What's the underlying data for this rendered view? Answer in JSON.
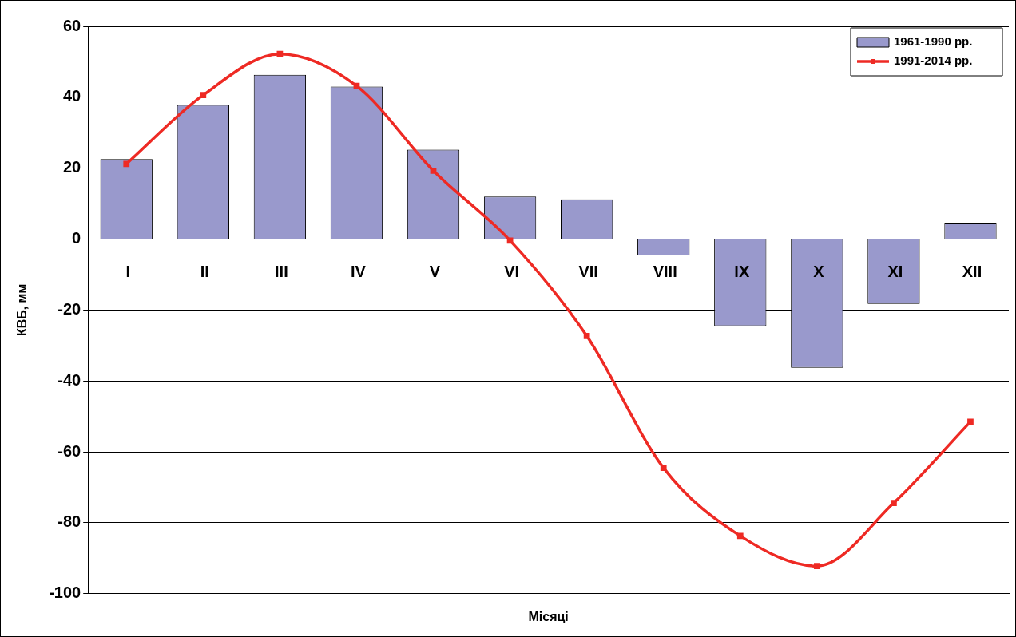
{
  "chart_data": {
    "type": "bar",
    "xlabel": "Місяці",
    "ylabel": "КВБ, мм",
    "categories": [
      "I",
      "II",
      "III",
      "IV",
      "V",
      "VI",
      "VII",
      "VIII",
      "IX",
      "X",
      "XI",
      "XII"
    ],
    "series": [
      {
        "name": "1961-1990 рр.",
        "color": "#9999cc",
        "values": [
          22.6,
          37.8,
          46.3,
          43.0,
          25.2,
          12.0,
          11.2,
          -4.6,
          -24.5,
          -36.3,
          -18.3,
          4.6
        ]
      },
      {
        "name": "1991-2014 рр.",
        "type": "line",
        "color": "#ee2a24",
        "values": [
          21.2,
          40.6,
          52.2,
          43.2,
          19.3,
          -0.4,
          -27.3,
          -64.5,
          -83.7,
          -92.2,
          -74.4,
          -51.5
        ]
      }
    ],
    "ylim": [
      -100,
      60
    ],
    "yticks": [
      -100,
      -80,
      -60,
      -40,
      -20,
      0,
      20,
      40,
      60
    ],
    "grid": "y",
    "legend": "top right",
    "marker": "square",
    "line_style": "solid"
  }
}
